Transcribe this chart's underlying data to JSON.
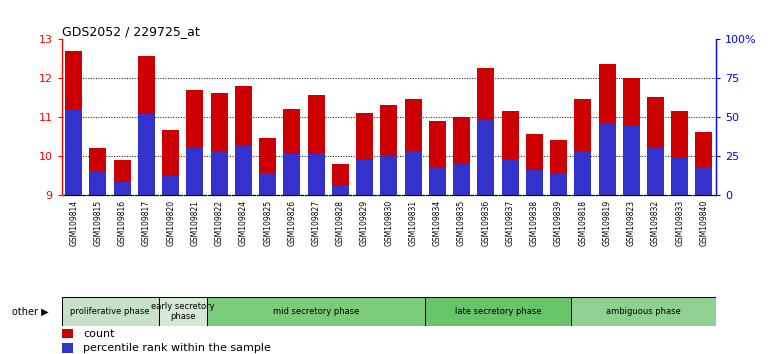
{
  "title": "GDS2052 / 229725_at",
  "samples": [
    "GSM109814",
    "GSM109815",
    "GSM109816",
    "GSM109817",
    "GSM109820",
    "GSM109821",
    "GSM109822",
    "GSM109824",
    "GSM109825",
    "GSM109826",
    "GSM109827",
    "GSM109828",
    "GSM109829",
    "GSM109830",
    "GSM109831",
    "GSM109834",
    "GSM109835",
    "GSM109836",
    "GSM109837",
    "GSM109838",
    "GSM109839",
    "GSM109818",
    "GSM109819",
    "GSM109823",
    "GSM109832",
    "GSM109833",
    "GSM109840"
  ],
  "counts": [
    12.7,
    10.2,
    9.9,
    12.55,
    10.65,
    11.7,
    11.6,
    11.8,
    10.45,
    11.2,
    11.55,
    9.8,
    11.1,
    11.3,
    11.45,
    10.9,
    11.0,
    12.25,
    11.15,
    10.55,
    10.4,
    11.45,
    12.35,
    12.0,
    11.5,
    11.15,
    10.6
  ],
  "percentile_ranks_pct": [
    55,
    15,
    8,
    52,
    12,
    30,
    28,
    32,
    14,
    26,
    27,
    6,
    22,
    25,
    28,
    18,
    20,
    48,
    23,
    16,
    14,
    28,
    46,
    44,
    30,
    24,
    18
  ],
  "phases": [
    {
      "name": "proliferative phase",
      "start": 0,
      "end": 4,
      "color": "#c8e6c8"
    },
    {
      "name": "early secretory\nphase",
      "start": 4,
      "end": 6,
      "color": "#c8e6c8"
    },
    {
      "name": "mid secretory phase",
      "start": 6,
      "end": 15,
      "color": "#90d890"
    },
    {
      "name": "late secretory phase",
      "start": 15,
      "end": 21,
      "color": "#78d878"
    },
    {
      "name": "ambiguous phase",
      "start": 21,
      "end": 27,
      "color": "#a0e0a0"
    }
  ],
  "phase_colors_distinct": [
    "#c8dfc8",
    "#d8ecd8",
    "#7dcc7d",
    "#6dc46d",
    "#90d490"
  ],
  "ylim_left": [
    9,
    13
  ],
  "ylim_right": [
    0,
    100
  ],
  "right_ticks": [
    0,
    25,
    50,
    75,
    100
  ],
  "right_tick_labels": [
    "0",
    "25",
    "50",
    "75",
    "100%"
  ],
  "left_ticks": [
    9,
    10,
    11,
    12,
    13
  ],
  "bar_color": "#cc0000",
  "pct_color": "#3333cc",
  "tick_bg_color": "#cccccc",
  "chart_bg_color": "#ffffff",
  "other_label": "other",
  "legend_count": "count",
  "legend_pct": "percentile rank within the sample"
}
